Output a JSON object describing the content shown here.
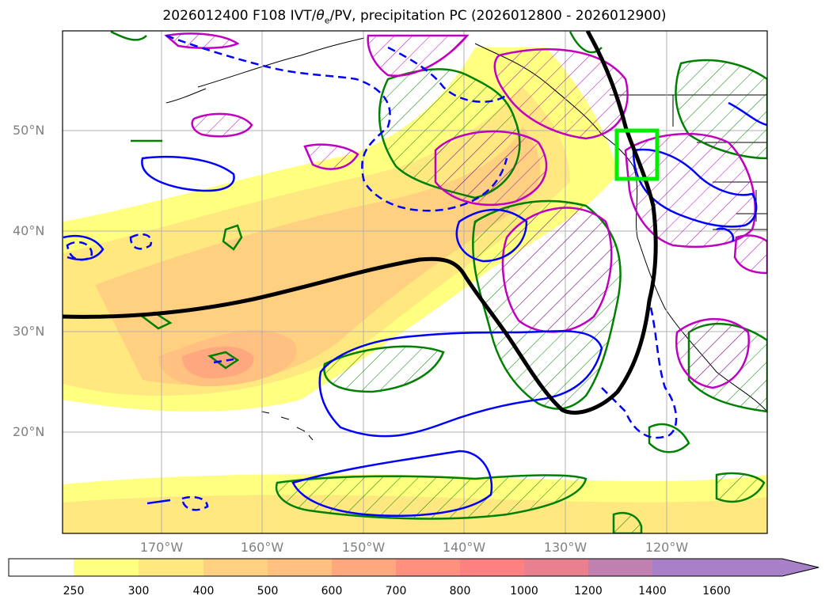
{
  "title": {
    "prefix": "2026012400 F108 IVT/",
    "theta": "θ",
    "theta_sub": "e",
    "suffix": "/PV, precipitation PC (2026012800 - 2026012900)"
  },
  "map": {
    "region": "North Pacific and western North America",
    "lat_labels": [
      "50°N",
      "40°N",
      "30°N",
      "20°N"
    ],
    "lon_labels": [
      "170°W",
      "160°W",
      "150°W",
      "140°W",
      "130°W",
      "120°W"
    ],
    "highlight_box_color": "#00ee00",
    "overlays": {
      "ivt_shading": "yellow-orange filled contours",
      "theta_e_solid": "#0000ff",
      "theta_e_dashed": "#0000ff",
      "precip_hatched_green": "#008000",
      "precip_hatched_magenta": "#c000c0",
      "pv_line": "#000000"
    }
  },
  "colorbar": {
    "levels": [
      "250",
      "300",
      "400",
      "500",
      "600",
      "700",
      "800",
      "1000",
      "1200",
      "1400",
      "1600"
    ],
    "colors": [
      "#ffffff",
      "#ffff80",
      "#ffe880",
      "#ffd080",
      "#ffc080",
      "#ffa880",
      "#ff9080",
      "#ff8080",
      "#e88090",
      "#c080b0",
      "#a880c8"
    ]
  }
}
